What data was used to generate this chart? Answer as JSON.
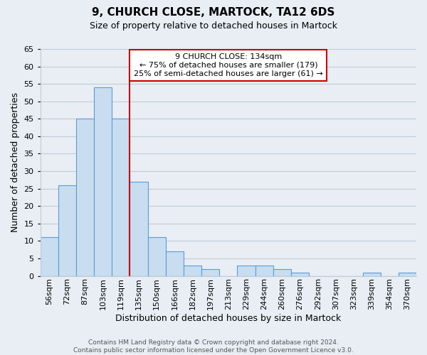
{
  "title": "9, CHURCH CLOSE, MARTOCK, TA12 6DS",
  "subtitle": "Size of property relative to detached houses in Martock",
  "xlabel": "Distribution of detached houses by size in Martock",
  "ylabel": "Number of detached properties",
  "bin_labels": [
    "56sqm",
    "72sqm",
    "87sqm",
    "103sqm",
    "119sqm",
    "135sqm",
    "150sqm",
    "166sqm",
    "182sqm",
    "197sqm",
    "213sqm",
    "229sqm",
    "244sqm",
    "260sqm",
    "276sqm",
    "292sqm",
    "307sqm",
    "323sqm",
    "339sqm",
    "354sqm",
    "370sqm"
  ],
  "bar_values": [
    11,
    26,
    45,
    54,
    45,
    27,
    11,
    7,
    3,
    2,
    0,
    3,
    3,
    2,
    1,
    0,
    0,
    0,
    1,
    0,
    1
  ],
  "bar_color": "#c8ddf0",
  "bar_edge_color": "#5b9bd5",
  "ylim": [
    0,
    65
  ],
  "yticks": [
    0,
    5,
    10,
    15,
    20,
    25,
    30,
    35,
    40,
    45,
    50,
    55,
    60,
    65
  ],
  "property_line_label": "9 CHURCH CLOSE: 134sqm",
  "annotation_line1": "← 75% of detached houses are smaller (179)",
  "annotation_line2": "25% of semi-detached houses are larger (61) →",
  "annotation_box_color": "#ffffff",
  "annotation_box_edge_color": "#cc0000",
  "property_line_color": "#cc0000",
  "footer_line1": "Contains HM Land Registry data © Crown copyright and database right 2024.",
  "footer_line2": "Contains public sector information licensed under the Open Government Licence v3.0.",
  "bg_color": "#e8eef4",
  "grid_color": "#c0ccd8",
  "title_fontsize": 11,
  "subtitle_fontsize": 9,
  "ylabel_fontsize": 9,
  "xlabel_fontsize": 9,
  "tick_fontsize": 8,
  "annotation_fontsize": 8,
  "footer_fontsize": 6.5
}
